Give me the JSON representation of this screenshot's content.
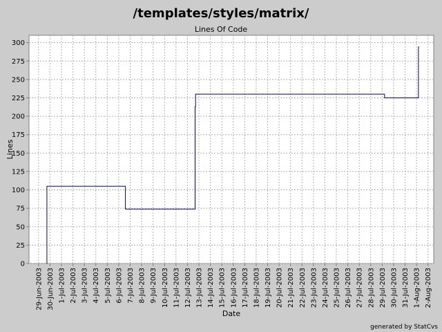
{
  "chart_data": {
    "type": "step",
    "title": "/templates/styles/matrix/",
    "subtitle": "Lines Of Code",
    "xlabel": "Date",
    "ylabel": "Lines",
    "footer": "generated by StatCvs",
    "series": [
      {
        "name": "Lines Of Code",
        "color": "#000080",
        "x": [
          "2003-06-29 17:00",
          "2003-06-29 17:30",
          "2003-07-06 14:00",
          "2003-07-12 16:00",
          "2003-07-12 17:00",
          "2003-07-29 05:00",
          "2003-08-01 04:00"
        ],
        "values": [
          0,
          105,
          74,
          213,
          230,
          225,
          295
        ]
      }
    ],
    "xlim": [
      "2003-06-28 04:00",
      "2003-08-02 12:00"
    ],
    "xticks": [
      {
        "value": "2003-06-29",
        "label": "29-Jun-2003"
      },
      {
        "value": "2003-06-30",
        "label": "30-Jun-2003"
      },
      {
        "value": "2003-07-01",
        "label": "1-Jul-2003"
      },
      {
        "value": "2003-07-02",
        "label": "2-Jul-2003"
      },
      {
        "value": "2003-07-03",
        "label": "3-Jul-2003"
      },
      {
        "value": "2003-07-04",
        "label": "4-Jul-2003"
      },
      {
        "value": "2003-07-05",
        "label": "5-Jul-2003"
      },
      {
        "value": "2003-07-06",
        "label": "6-Jul-2003"
      },
      {
        "value": "2003-07-07",
        "label": "7-Jul-2003"
      },
      {
        "value": "2003-07-08",
        "label": "8-Jul-2003"
      },
      {
        "value": "2003-07-09",
        "label": "9-Jul-2003"
      },
      {
        "value": "2003-07-10",
        "label": "10-Jul-2003"
      },
      {
        "value": "2003-07-11",
        "label": "11-Jul-2003"
      },
      {
        "value": "2003-07-12",
        "label": "12-Jul-2003"
      },
      {
        "value": "2003-07-13",
        "label": "13-Jul-2003"
      },
      {
        "value": "2003-07-14",
        "label": "14-Jul-2003"
      },
      {
        "value": "2003-07-15",
        "label": "15-Jul-2003"
      },
      {
        "value": "2003-07-16",
        "label": "16-Jul-2003"
      },
      {
        "value": "2003-07-17",
        "label": "17-Jul-2003"
      },
      {
        "value": "2003-07-18",
        "label": "18-Jul-2003"
      },
      {
        "value": "2003-07-19",
        "label": "19-Jul-2003"
      },
      {
        "value": "2003-07-20",
        "label": "20-Jul-2003"
      },
      {
        "value": "2003-07-21",
        "label": "21-Jul-2003"
      },
      {
        "value": "2003-07-22",
        "label": "22-Jul-2003"
      },
      {
        "value": "2003-07-23",
        "label": "23-Jul-2003"
      },
      {
        "value": "2003-07-24",
        "label": "24-Jul-2003"
      },
      {
        "value": "2003-07-25",
        "label": "25-Jul-2003"
      },
      {
        "value": "2003-07-26",
        "label": "26-Jul-2003"
      },
      {
        "value": "2003-07-27",
        "label": "27-Jul-2003"
      },
      {
        "value": "2003-07-28",
        "label": "28-Jul-2003"
      },
      {
        "value": "2003-07-29",
        "label": "29-Jul-2003"
      },
      {
        "value": "2003-07-30",
        "label": "30-Jul-2003"
      },
      {
        "value": "2003-07-31",
        "label": "31-Jul-2003"
      },
      {
        "value": "2003-08-01",
        "label": "1-Aug-2003"
      },
      {
        "value": "2003-08-02",
        "label": "2-Aug-2003"
      }
    ],
    "ylim": [
      0,
      310
    ],
    "yticks": [
      0,
      25,
      50,
      75,
      100,
      125,
      150,
      175,
      200,
      225,
      250,
      275,
      300
    ],
    "grid": true
  }
}
